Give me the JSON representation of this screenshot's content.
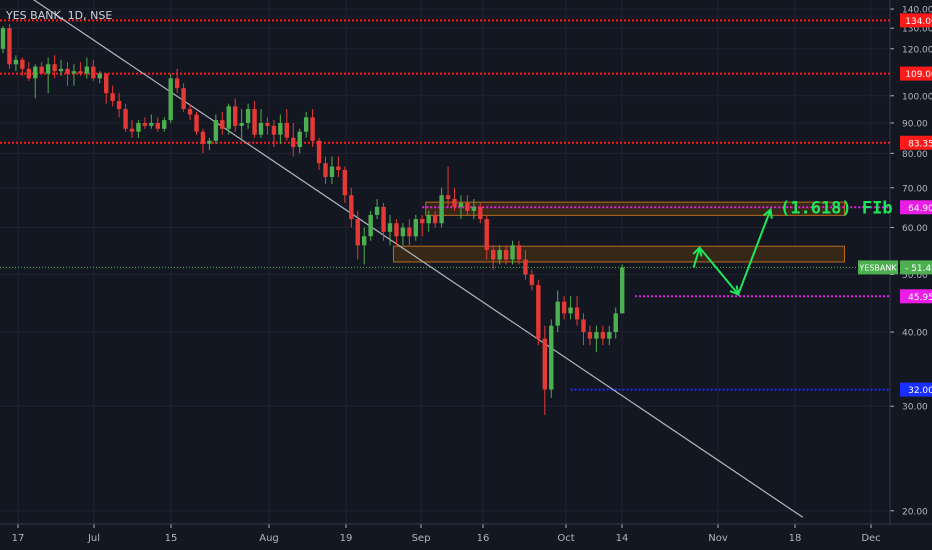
{
  "symbol_title": "YES BANK, 1D, NSE",
  "colors": {
    "background": "#131722",
    "grid": "#1e2230",
    "up": "#4caf50",
    "down": "#e53935",
    "trendline": "#b2b5be",
    "red_level": "#ff1a1a",
    "magenta_level": "#e91ee6",
    "blue_level": "#1a2eff",
    "price_line": "#4caf50",
    "zone_fill": "#3d2a18",
    "zone_border": "#b86b1e",
    "projection": "#1ee85a",
    "axis_text": "#b2b5be"
  },
  "chart_data": {
    "type": "candlestick",
    "title": "YES BANK, 1D, NSE",
    "y_scale": "log",
    "ylim": [
      19,
      145
    ],
    "y_ticks": [
      20,
      30,
      40,
      50,
      60,
      70,
      80,
      90,
      100,
      120,
      130,
      140
    ],
    "y_tick_labels": [
      "20.00",
      "30.00",
      "40.00",
      "50.00",
      "60.00",
      "70.00",
      "80.00",
      "90.00",
      "100.00",
      "120.00",
      "130.00",
      "140.00"
    ],
    "x_ticks": [
      "17",
      "Jul",
      "15",
      "Aug",
      "19",
      "Sep",
      "16",
      "Oct",
      "14",
      "Nov",
      "18",
      "Dec"
    ],
    "grid": true,
    "levels": [
      {
        "price": 134.0,
        "label": "134.00",
        "style": "red"
      },
      {
        "price": 109.0,
        "label": "109.00",
        "style": "red"
      },
      {
        "price": 83.35,
        "label": "83.35",
        "style": "red"
      },
      {
        "price": 64.9,
        "label": "64.90",
        "style": "magenta"
      },
      {
        "price": 45.95,
        "label": "45.95",
        "style": "magenta"
      },
      {
        "price": 32.0,
        "label": "32.00",
        "style": "blue"
      }
    ],
    "last_price": {
      "symbol": "YESBANK",
      "value": "51.40",
      "price": 51.4
    },
    "zones": [
      {
        "from_bar": 66,
        "to_bar": 130,
        "low": 62.9,
        "high": 66.2
      },
      {
        "from_bar": 61,
        "to_bar": 130,
        "low": 52.5,
        "high": 55.8
      }
    ],
    "trendline": {
      "start_bar": 4,
      "start_price": 147,
      "end_bar": 124,
      "end_price": 19.5
    },
    "projection": {
      "label": "(1.618) FIb",
      "points": [
        {
          "bar": 108,
          "price": 55.5
        },
        {
          "bar": 114,
          "price": 46.3
        },
        {
          "bar": 119,
          "price": 64.3
        }
      ]
    },
    "candles": [
      [
        120,
        131,
        118,
        130
      ],
      [
        130,
        132,
        111,
        113
      ],
      [
        113,
        117,
        110,
        115
      ],
      [
        115,
        116,
        108,
        111
      ],
      [
        111,
        114,
        106,
        107
      ],
      [
        107,
        113,
        99,
        112
      ],
      [
        112,
        114,
        109,
        109
      ],
      [
        109,
        116,
        101,
        113
      ],
      [
        113,
        117,
        107,
        110
      ],
      [
        110,
        115,
        108,
        111
      ],
      [
        111,
        114,
        104,
        109
      ],
      [
        109,
        113,
        104,
        110
      ],
      [
        110,
        114,
        108,
        109
      ],
      [
        109,
        116,
        107,
        112
      ],
      [
        112,
        115,
        106,
        107
      ],
      [
        107,
        110,
        105,
        109
      ],
      [
        109,
        109,
        97,
        101
      ],
      [
        101,
        104,
        96,
        98
      ],
      [
        98,
        101,
        92,
        95
      ],
      [
        95,
        97,
        87,
        88
      ],
      [
        88,
        91,
        85,
        87
      ],
      [
        87,
        91,
        85,
        90
      ],
      [
        90,
        92,
        88,
        89
      ],
      [
        89,
        93,
        88,
        90
      ],
      [
        90,
        92,
        87,
        88
      ],
      [
        88,
        92,
        87,
        91
      ],
      [
        91,
        109,
        90,
        107
      ],
      [
        107,
        111,
        101,
        103
      ],
      [
        103,
        105,
        94,
        95
      ],
      [
        95,
        97,
        91,
        93
      ],
      [
        93,
        94,
        86,
        87
      ],
      [
        87,
        88,
        80,
        83
      ],
      [
        83,
        85,
        81,
        84
      ],
      [
        84,
        93,
        83,
        91
      ],
      [
        91,
        94,
        86,
        88
      ],
      [
        88,
        97,
        86,
        96
      ],
      [
        96,
        99,
        87,
        89
      ],
      [
        89,
        95,
        84,
        90
      ],
      [
        90,
        97,
        88,
        95
      ],
      [
        95,
        98,
        85,
        86
      ],
      [
        86,
        95,
        85,
        90
      ],
      [
        90,
        92,
        86,
        89
      ],
      [
        89,
        91,
        82,
        86
      ],
      [
        86,
        93,
        83,
        90
      ],
      [
        90,
        95,
        84,
        85
      ],
      [
        85,
        90,
        79,
        82
      ],
      [
        82,
        88,
        80,
        87
      ],
      [
        87,
        94,
        85,
        92
      ],
      [
        92,
        95,
        82,
        84
      ],
      [
        84,
        85,
        75,
        77
      ],
      [
        77,
        79,
        71,
        73
      ],
      [
        73,
        79,
        71,
        76
      ],
      [
        76,
        79,
        73,
        75
      ],
      [
        75,
        76,
        66,
        68
      ],
      [
        68,
        70,
        60,
        62
      ],
      [
        62,
        64,
        53,
        56
      ],
      [
        56,
        60,
        52,
        58
      ],
      [
        58,
        64,
        57,
        63
      ],
      [
        63,
        67,
        62,
        65
      ],
      [
        65,
        66,
        57,
        59
      ],
      [
        59,
        63,
        56,
        61
      ],
      [
        61,
        62,
        56,
        58
      ],
      [
        58,
        61,
        56,
        60
      ],
      [
        60,
        62,
        56,
        58
      ],
      [
        58,
        63,
        57,
        62
      ],
      [
        62,
        63,
        58,
        61
      ],
      [
        61,
        64,
        59,
        63
      ],
      [
        63,
        64,
        60,
        61
      ],
      [
        61,
        70,
        60,
        68
      ],
      [
        68,
        76,
        65,
        67
      ],
      [
        67,
        70,
        64,
        65
      ],
      [
        65,
        68,
        62,
        66
      ],
      [
        66,
        68,
        63,
        64
      ],
      [
        64,
        67,
        62,
        65
      ],
      [
        65,
        66,
        61,
        62
      ],
      [
        62,
        63,
        53,
        55
      ],
      [
        55,
        56,
        51,
        53
      ],
      [
        53,
        56,
        52,
        55
      ],
      [
        55,
        56,
        52,
        53
      ],
      [
        53,
        57,
        52,
        56
      ],
      [
        56,
        57,
        52,
        53
      ],
      [
        53,
        55,
        49,
        50
      ],
      [
        50,
        51,
        47,
        48
      ],
      [
        48,
        49,
        38,
        39
      ],
      [
        39,
        41,
        29,
        32
      ],
      [
        32,
        42,
        31,
        41
      ],
      [
        41,
        47,
        40,
        45
      ],
      [
        45,
        46,
        42,
        43
      ],
      [
        43,
        46,
        42,
        44
      ],
      [
        44,
        46,
        41,
        42
      ],
      [
        42,
        43,
        38,
        40
      ],
      [
        40,
        41,
        38,
        39
      ],
      [
        39,
        41,
        37,
        40
      ],
      [
        40,
        41,
        38,
        39
      ],
      [
        39,
        41,
        38,
        40
      ],
      [
        40,
        44,
        39,
        43
      ],
      [
        43,
        52,
        43,
        51.4
      ]
    ]
  }
}
